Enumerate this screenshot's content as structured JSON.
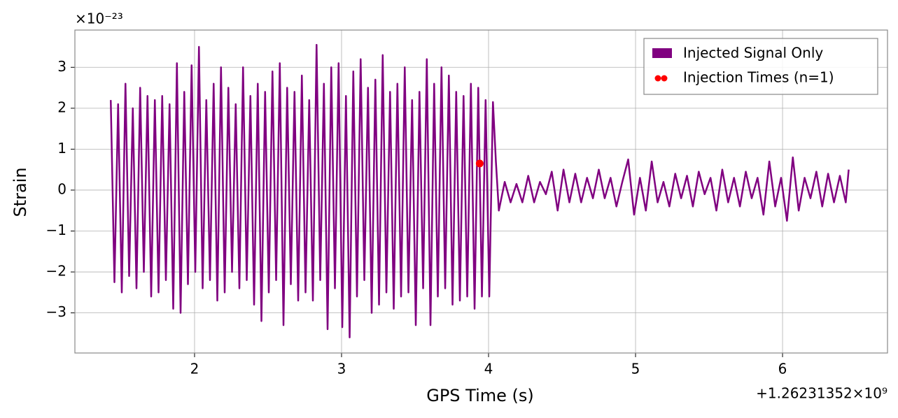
{
  "chart_data": {
    "type": "line",
    "x_label": "GPS Time (s)",
    "y_label": "Strain",
    "x_offset_label": "+1.26231352×10⁹",
    "y_offset_label": "×10⁻²³",
    "xlim": [
      1.186,
      6.714
    ],
    "ylim": [
      -3.98,
      3.91
    ],
    "xticks": [
      2,
      3,
      4,
      5,
      6
    ],
    "yticks": [
      {
        "value": -3,
        "label": "−3"
      },
      {
        "value": -2,
        "label": "−2"
      },
      {
        "value": -1,
        "label": "−1"
      },
      0,
      1,
      2,
      3
    ],
    "grid": true,
    "legend": "upper right",
    "x": [
      1.43,
      1.455,
      1.48,
      1.505,
      1.53,
      1.555,
      1.58,
      1.605,
      1.63,
      1.655,
      1.68,
      1.705,
      1.73,
      1.755,
      1.78,
      1.805,
      1.83,
      1.855,
      1.88,
      1.905,
      1.93,
      1.955,
      1.98,
      2.005,
      2.03,
      2.055,
      2.08,
      2.105,
      2.13,
      2.155,
      2.18,
      2.205,
      2.23,
      2.255,
      2.28,
      2.305,
      2.33,
      2.355,
      2.38,
      2.405,
      2.43,
      2.455,
      2.48,
      2.505,
      2.53,
      2.555,
      2.58,
      2.605,
      2.63,
      2.655,
      2.68,
      2.705,
      2.73,
      2.755,
      2.78,
      2.805,
      2.83,
      2.855,
      2.88,
      2.905,
      2.93,
      2.955,
      2.98,
      3.005,
      3.03,
      3.055,
      3.08,
      3.105,
      3.13,
      3.155,
      3.18,
      3.205,
      3.23,
      3.255,
      3.28,
      3.305,
      3.33,
      3.355,
      3.38,
      3.405,
      3.43,
      3.455,
      3.48,
      3.505,
      3.53,
      3.555,
      3.58,
      3.605,
      3.63,
      3.655,
      3.68,
      3.705,
      3.73,
      3.755,
      3.78,
      3.805,
      3.83,
      3.855,
      3.88,
      3.905,
      3.93,
      3.955,
      3.98,
      4.005,
      4.03,
      4.05,
      4.07,
      4.11,
      4.15,
      4.19,
      4.23,
      4.27,
      4.31,
      4.35,
      4.39,
      4.43,
      4.47,
      4.51,
      4.55,
      4.59,
      4.63,
      4.67,
      4.71,
      4.75,
      4.79,
      4.83,
      4.87,
      4.91,
      4.95,
      4.99,
      5.03,
      5.07,
      5.11,
      5.15,
      5.19,
      5.23,
      5.27,
      5.31,
      5.35,
      5.39,
      5.43,
      5.47,
      5.51,
      5.55,
      5.59,
      5.63,
      5.67,
      5.71,
      5.75,
      5.79,
      5.83,
      5.87,
      5.91,
      5.95,
      5.99,
      6.03,
      6.07,
      6.11,
      6.15,
      6.19,
      6.23,
      6.27,
      6.31,
      6.35,
      6.39,
      6.43,
      6.45
    ],
    "series": [
      {
        "name": "Injected Signal Only",
        "color": "#800080",
        "values": [
          2.2,
          -2.25,
          2.1,
          -2.5,
          2.6,
          -2.1,
          2.0,
          -2.4,
          2.5,
          -2.0,
          2.3,
          -2.6,
          2.2,
          -2.5,
          2.3,
          -2.2,
          2.1,
          -2.9,
          3.1,
          -3.0,
          2.4,
          -2.3,
          3.05,
          -2.0,
          3.5,
          -2.4,
          2.2,
          -2.2,
          2.6,
          -2.7,
          3.0,
          -2.5,
          2.5,
          -2.0,
          2.1,
          -2.4,
          3.0,
          -2.2,
          2.3,
          -2.8,
          2.6,
          -3.2,
          2.4,
          -2.5,
          2.9,
          -2.2,
          3.1,
          -3.3,
          2.5,
          -2.3,
          2.4,
          -2.7,
          2.8,
          -2.5,
          2.2,
          -2.7,
          3.55,
          -2.2,
          2.6,
          -3.4,
          3.0,
          -2.4,
          3.1,
          -3.35,
          2.3,
          -3.6,
          2.9,
          -2.6,
          3.2,
          -2.2,
          2.5,
          -3.0,
          2.7,
          -2.8,
          3.3,
          -2.5,
          2.4,
          -2.9,
          2.6,
          -2.6,
          3.0,
          -2.5,
          2.2,
          -3.3,
          2.4,
          -2.4,
          3.2,
          -3.3,
          2.6,
          -2.6,
          3.0,
          -2.4,
          2.8,
          -2.8,
          2.4,
          -2.7,
          2.3,
          -2.6,
          2.6,
          -2.9,
          2.5,
          -2.6,
          2.2,
          -2.6,
          2.15,
          0.7,
          -0.5,
          0.2,
          -0.3,
          0.15,
          -0.3,
          0.35,
          -0.3,
          0.2,
          -0.1,
          0.45,
          -0.5,
          0.5,
          -0.3,
          0.4,
          -0.3,
          0.3,
          -0.2,
          0.5,
          -0.2,
          0.3,
          -0.4,
          0.2,
          0.75,
          -0.6,
          0.3,
          -0.5,
          0.7,
          -0.3,
          0.2,
          -0.4,
          0.4,
          -0.2,
          0.35,
          -0.4,
          0.45,
          -0.1,
          0.3,
          -0.5,
          0.5,
          -0.3,
          0.3,
          -0.4,
          0.45,
          -0.2,
          0.3,
          -0.6,
          0.7,
          -0.4,
          0.3,
          -0.75,
          0.8,
          -0.5,
          0.3,
          -0.2,
          0.45,
          -0.4,
          0.4,
          -0.3,
          0.35,
          -0.3,
          0.5
        ]
      }
    ],
    "markers": {
      "name": "Injection Times (n=1)",
      "color": "#ff0000",
      "x": [
        3.94
      ],
      "values": [
        0.65
      ]
    }
  }
}
